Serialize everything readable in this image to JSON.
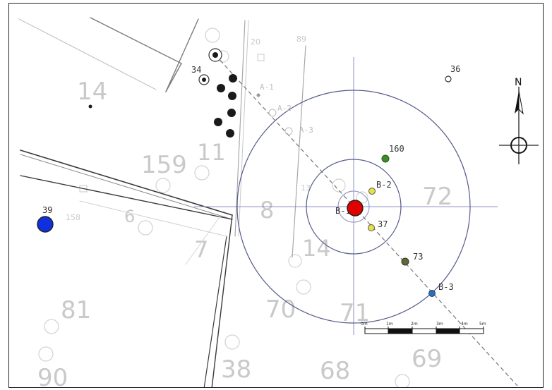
{
  "map": {
    "background_numbers": [
      "14",
      "159",
      "11",
      "8",
      "72",
      "7",
      "6",
      "14",
      "70",
      "71",
      "81",
      "90",
      "38",
      "68",
      "69",
      "158",
      "20",
      "89",
      "13"
    ],
    "point_labels": {
      "p34": "34",
      "p36": "36",
      "p39": "39",
      "p160": "160",
      "b2": "B-2",
      "b1": "B-1",
      "p37": "37",
      "p73": "73",
      "b3": "B-3",
      "a1": "A-1",
      "a2": "A-2",
      "a3": "A-3"
    },
    "north_label": "N",
    "scale_bar": {
      "ticks": [
        "0m",
        "1m",
        "2m",
        "3m",
        "4m",
        "5m"
      ]
    },
    "colors": {
      "red_marker": "#e00000",
      "blue_marker": "#1030e0",
      "green_point": "#3e8b2a",
      "yellow_point": "#e6e04a",
      "olive_point": "#5e6b2f",
      "blue_point": "#2f6fb5",
      "circle_stroke": "#555a8a",
      "faint_line": "#c8c8c8"
    }
  }
}
